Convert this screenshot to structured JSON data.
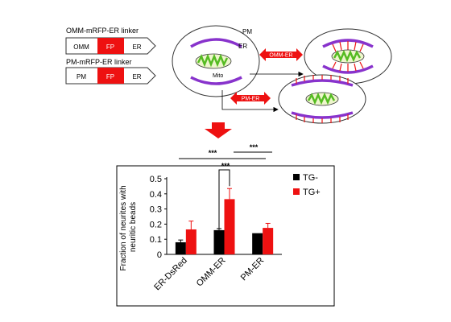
{
  "constructs": {
    "omm": {
      "title": "OMM-mRFP-ER linker",
      "left": "OMM",
      "mid": "FP",
      "right": "ER"
    },
    "pm": {
      "title": "PM-mRFP-ER linker",
      "left": "PM",
      "mid": "FP",
      "right": "ER"
    }
  },
  "cell_labels": {
    "pm": "PM",
    "er": "ER",
    "mito": "Mito"
  },
  "arrows": {
    "omm_er": "OMM-ER",
    "pm_er": "PM-ER"
  },
  "significance": {
    "top": "***",
    "right": "***",
    "inner": "***"
  },
  "colors": {
    "red": "#ee1111",
    "purple": "#8833cc",
    "green": "#55bb22",
    "black": "#000000"
  },
  "chart_data": {
    "type": "bar",
    "categories": [
      "ER-DsRed",
      "OMM-ER",
      "PM-ER"
    ],
    "series": [
      {
        "name": "TG-",
        "color": "#000000",
        "values": [
          0.08,
          0.16,
          0.14
        ],
        "errors": [
          0.015,
          0.01,
          0.0
        ]
      },
      {
        "name": "TG+",
        "color": "#ee1111",
        "values": [
          0.165,
          0.365,
          0.175
        ],
        "errors": [
          0.055,
          0.07,
          0.03
        ]
      }
    ],
    "ylabel": "Fraction of neurites with neuritic beads",
    "yticks": [
      "0",
      "0.1",
      "0.2",
      "0.3",
      "0.4",
      "0.5"
    ],
    "ylim": [
      0,
      0.5
    ],
    "legend": "right"
  }
}
